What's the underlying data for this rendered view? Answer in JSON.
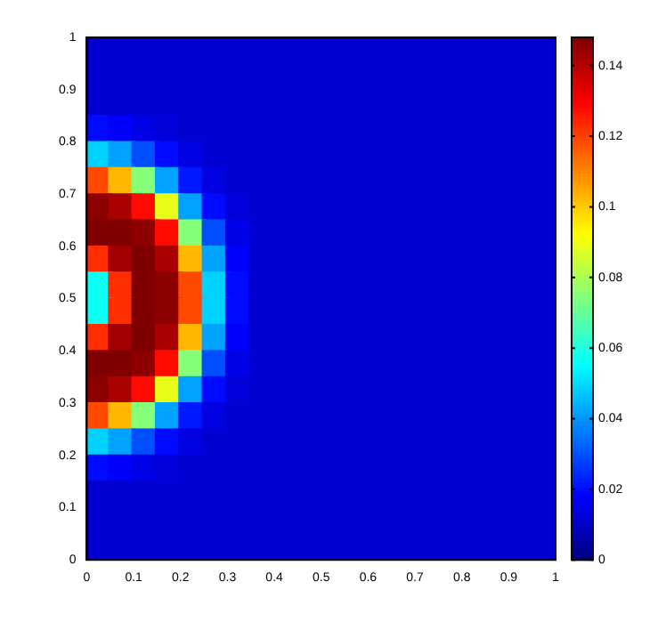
{
  "chart_data": {
    "type": "heatmap",
    "xlim": [
      0,
      1
    ],
    "ylim": [
      0,
      1
    ],
    "xticks": [
      0,
      0.1,
      0.2,
      0.3,
      0.4,
      0.5,
      0.6,
      0.7,
      0.8,
      0.9,
      1
    ],
    "yticks": [
      0,
      0.1,
      0.2,
      0.3,
      0.4,
      0.5,
      0.6,
      0.7,
      0.8,
      0.9,
      1
    ],
    "clim": [
      0,
      0.148
    ],
    "cticks": [
      0,
      0.02,
      0.04,
      0.06,
      0.08,
      0.1,
      0.12,
      0.14
    ],
    "grid": false,
    "cells": [
      [
        0.012,
        0.012,
        0.012,
        0.012,
        0.012,
        0.012,
        0.012,
        0.012,
        0.012,
        0.012,
        0.012,
        0.012,
        0.012,
        0.012,
        0.012,
        0.012,
        0.012,
        0.012,
        0.012,
        0.012
      ],
      [
        0.012,
        0.012,
        0.012,
        0.012,
        0.012,
        0.012,
        0.012,
        0.012,
        0.012,
        0.012,
        0.012,
        0.012,
        0.012,
        0.012,
        0.012,
        0.012,
        0.012,
        0.012,
        0.012,
        0.012
      ],
      [
        0.012,
        0.012,
        0.012,
        0.012,
        0.012,
        0.012,
        0.012,
        0.012,
        0.012,
        0.012,
        0.012,
        0.012,
        0.012,
        0.012,
        0.012,
        0.012,
        0.012,
        0.012,
        0.012,
        0.012
      ],
      [
        0.02,
        0.018,
        0.015,
        0.013,
        0.012,
        0.012,
        0.012,
        0.012,
        0.012,
        0.012,
        0.012,
        0.012,
        0.012,
        0.012,
        0.012,
        0.012,
        0.012,
        0.012,
        0.012,
        0.012
      ],
      [
        0.049,
        0.042,
        0.03,
        0.02,
        0.014,
        0.012,
        0.012,
        0.012,
        0.012,
        0.012,
        0.012,
        0.012,
        0.012,
        0.012,
        0.012,
        0.012,
        0.012,
        0.012,
        0.012,
        0.012
      ],
      [
        0.119,
        0.103,
        0.075,
        0.042,
        0.022,
        0.014,
        0.012,
        0.012,
        0.012,
        0.012,
        0.012,
        0.012,
        0.012,
        0.012,
        0.012,
        0.012,
        0.012,
        0.012,
        0.012,
        0.012
      ],
      [
        0.146,
        0.142,
        0.128,
        0.089,
        0.042,
        0.02,
        0.013,
        0.012,
        0.012,
        0.012,
        0.012,
        0.012,
        0.012,
        0.012,
        0.012,
        0.012,
        0.012,
        0.012,
        0.012,
        0.012
      ],
      [
        0.148,
        0.148,
        0.146,
        0.128,
        0.075,
        0.03,
        0.015,
        0.012,
        0.012,
        0.012,
        0.012,
        0.012,
        0.012,
        0.012,
        0.012,
        0.012,
        0.012,
        0.012,
        0.012,
        0.012
      ],
      [
        0.123,
        0.143,
        0.148,
        0.142,
        0.103,
        0.042,
        0.018,
        0.012,
        0.012,
        0.012,
        0.012,
        0.012,
        0.012,
        0.012,
        0.012,
        0.012,
        0.012,
        0.012,
        0.012,
        0.012
      ],
      [
        0.057,
        0.123,
        0.148,
        0.146,
        0.119,
        0.049,
        0.02,
        0.012,
        0.012,
        0.012,
        0.012,
        0.012,
        0.012,
        0.012,
        0.012,
        0.012,
        0.012,
        0.012,
        0.012,
        0.012
      ],
      [
        0.057,
        0.123,
        0.148,
        0.146,
        0.119,
        0.049,
        0.02,
        0.012,
        0.012,
        0.012,
        0.012,
        0.012,
        0.012,
        0.012,
        0.012,
        0.012,
        0.012,
        0.012,
        0.012,
        0.012
      ],
      [
        0.123,
        0.143,
        0.148,
        0.142,
        0.103,
        0.042,
        0.018,
        0.012,
        0.012,
        0.012,
        0.012,
        0.012,
        0.012,
        0.012,
        0.012,
        0.012,
        0.012,
        0.012,
        0.012,
        0.012
      ],
      [
        0.148,
        0.148,
        0.146,
        0.128,
        0.075,
        0.03,
        0.015,
        0.012,
        0.012,
        0.012,
        0.012,
        0.012,
        0.012,
        0.012,
        0.012,
        0.012,
        0.012,
        0.012,
        0.012,
        0.012
      ],
      [
        0.146,
        0.142,
        0.128,
        0.089,
        0.042,
        0.02,
        0.013,
        0.012,
        0.012,
        0.012,
        0.012,
        0.012,
        0.012,
        0.012,
        0.012,
        0.012,
        0.012,
        0.012,
        0.012,
        0.012
      ],
      [
        0.119,
        0.103,
        0.075,
        0.042,
        0.022,
        0.014,
        0.012,
        0.012,
        0.012,
        0.012,
        0.012,
        0.012,
        0.012,
        0.012,
        0.012,
        0.012,
        0.012,
        0.012,
        0.012,
        0.012
      ],
      [
        0.049,
        0.042,
        0.03,
        0.02,
        0.014,
        0.012,
        0.012,
        0.012,
        0.012,
        0.012,
        0.012,
        0.012,
        0.012,
        0.012,
        0.012,
        0.012,
        0.012,
        0.012,
        0.012,
        0.012
      ],
      [
        0.02,
        0.018,
        0.015,
        0.013,
        0.012,
        0.012,
        0.012,
        0.012,
        0.012,
        0.012,
        0.012,
        0.012,
        0.012,
        0.012,
        0.012,
        0.012,
        0.012,
        0.012,
        0.012,
        0.012
      ],
      [
        0.012,
        0.012,
        0.012,
        0.012,
        0.012,
        0.012,
        0.012,
        0.012,
        0.012,
        0.012,
        0.012,
        0.012,
        0.012,
        0.012,
        0.012,
        0.012,
        0.012,
        0.012,
        0.012,
        0.012
      ],
      [
        0.012,
        0.012,
        0.012,
        0.012,
        0.012,
        0.012,
        0.012,
        0.012,
        0.012,
        0.012,
        0.012,
        0.012,
        0.012,
        0.012,
        0.012,
        0.012,
        0.012,
        0.012,
        0.012,
        0.012
      ],
      [
        0.012,
        0.012,
        0.012,
        0.012,
        0.012,
        0.012,
        0.012,
        0.012,
        0.012,
        0.012,
        0.012,
        0.012,
        0.012,
        0.012,
        0.012,
        0.012,
        0.012,
        0.012,
        0.012,
        0.012
      ]
    ]
  }
}
